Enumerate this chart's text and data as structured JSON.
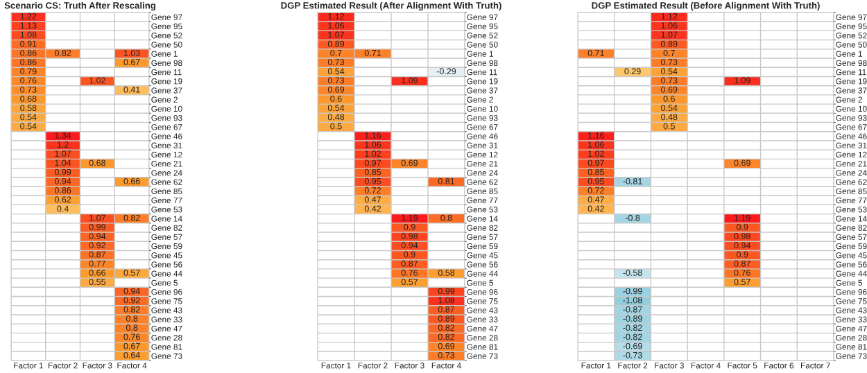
{
  "chart_data": [
    {
      "type": "heatmap",
      "title": "Scenario CS: Truth After Rescaling",
      "grid": true,
      "data_labels": true,
      "categories": [
        "Factor 1",
        "Factor 2",
        "Factor 3",
        "Factor 4"
      ],
      "y_categories": [
        "Gene 97",
        "Gene 95",
        "Gene 52",
        "Gene 50",
        "Gene 1",
        "Gene 98",
        "Gene 11",
        "Gene 19",
        "Gene 37",
        "Gene 2",
        "Gene 10",
        "Gene 93",
        "Gene 67",
        "Gene 46",
        "Gene 31",
        "Gene 12",
        "Gene 21",
        "Gene 24",
        "Gene 62",
        "Gene 85",
        "Gene 77",
        "Gene 53",
        "Gene 14",
        "Gene 82",
        "Gene 57",
        "Gene 59",
        "Gene 45",
        "Gene 56",
        "Gene 44",
        "Gene 5",
        "Gene 96",
        "Gene 75",
        "Gene 43",
        "Gene 33",
        "Gene 47",
        "Gene 28",
        "Gene 81",
        "Gene 73"
      ],
      "cells": [
        [
          1.22,
          null,
          null,
          null
        ],
        [
          1.13,
          null,
          null,
          null
        ],
        [
          1.08,
          null,
          null,
          null
        ],
        [
          0.91,
          null,
          null,
          null
        ],
        [
          0.86,
          0.82,
          null,
          1.03
        ],
        [
          0.86,
          null,
          null,
          0.67
        ],
        [
          0.79,
          null,
          null,
          null
        ],
        [
          0.76,
          null,
          1.02,
          null
        ],
        [
          0.73,
          null,
          null,
          0.41
        ],
        [
          0.68,
          null,
          null,
          null
        ],
        [
          0.58,
          null,
          null,
          null
        ],
        [
          0.54,
          null,
          null,
          null
        ],
        [
          0.54,
          null,
          null,
          null
        ],
        [
          null,
          1.34,
          null,
          null
        ],
        [
          null,
          1.2,
          null,
          null
        ],
        [
          null,
          1.07,
          null,
          null
        ],
        [
          null,
          1.04,
          0.68,
          null
        ],
        [
          null,
          0.99,
          null,
          null
        ],
        [
          null,
          0.94,
          null,
          0.66
        ],
        [
          null,
          0.86,
          null,
          null
        ],
        [
          null,
          0.62,
          null,
          null
        ],
        [
          null,
          0.4,
          null,
          null
        ],
        [
          null,
          null,
          1.07,
          0.82
        ],
        [
          null,
          null,
          0.99,
          null
        ],
        [
          null,
          null,
          0.94,
          null
        ],
        [
          null,
          null,
          0.92,
          null
        ],
        [
          null,
          null,
          0.87,
          null
        ],
        [
          null,
          null,
          0.77,
          null
        ],
        [
          null,
          null,
          0.66,
          0.57
        ],
        [
          null,
          null,
          0.55,
          null
        ],
        [
          null,
          null,
          null,
          0.94
        ],
        [
          null,
          null,
          null,
          0.92
        ],
        [
          null,
          null,
          null,
          0.82
        ],
        [
          null,
          null,
          null,
          0.8
        ],
        [
          null,
          null,
          null,
          0.8
        ],
        [
          null,
          null,
          null,
          0.76
        ],
        [
          null,
          null,
          null,
          0.67
        ],
        [
          null,
          null,
          null,
          0.64
        ]
      ]
    },
    {
      "type": "heatmap",
      "title": "DGP Estimated Result (After Alignment With Truth)",
      "grid": true,
      "data_labels": true,
      "categories": [
        "Factor 1",
        "Factor 2",
        "Factor 3",
        "Factor 4"
      ],
      "y_categories": [
        "Gene 97",
        "Gene 95",
        "Gene 52",
        "Gene 50",
        "Gene 1",
        "Gene 98",
        "Gene 11",
        "Gene 19",
        "Gene 37",
        "Gene 2",
        "Gene 10",
        "Gene 93",
        "Gene 67",
        "Gene 46",
        "Gene 31",
        "Gene 12",
        "Gene 21",
        "Gene 24",
        "Gene 62",
        "Gene 85",
        "Gene 77",
        "Gene 53",
        "Gene 14",
        "Gene 82",
        "Gene 57",
        "Gene 59",
        "Gene 45",
        "Gene 56",
        "Gene 44",
        "Gene 5",
        "Gene 96",
        "Gene 75",
        "Gene 43",
        "Gene 33",
        "Gene 47",
        "Gene 28",
        "Gene 81",
        "Gene 73"
      ],
      "cells": [
        [
          1.12,
          null,
          null,
          null
        ],
        [
          1.06,
          null,
          null,
          null
        ],
        [
          1.07,
          null,
          null,
          null
        ],
        [
          0.89,
          null,
          null,
          null
        ],
        [
          0.7,
          0.71,
          null,
          null
        ],
        [
          0.73,
          null,
          null,
          null
        ],
        [
          0.54,
          null,
          null,
          -0.29
        ],
        [
          0.73,
          null,
          1.09,
          null
        ],
        [
          0.69,
          null,
          null,
          null
        ],
        [
          0.6,
          null,
          null,
          null
        ],
        [
          0.54,
          null,
          null,
          null
        ],
        [
          0.48,
          null,
          null,
          null
        ],
        [
          0.5,
          null,
          null,
          null
        ],
        [
          null,
          1.16,
          null,
          null
        ],
        [
          null,
          1.06,
          null,
          null
        ],
        [
          null,
          1.02,
          null,
          null
        ],
        [
          null,
          0.97,
          0.69,
          null
        ],
        [
          null,
          0.85,
          null,
          null
        ],
        [
          null,
          0.95,
          null,
          0.81
        ],
        [
          null,
          0.72,
          null,
          null
        ],
        [
          null,
          0.47,
          null,
          null
        ],
        [
          null,
          0.42,
          null,
          null
        ],
        [
          null,
          null,
          1.19,
          0.8
        ],
        [
          null,
          null,
          0.9,
          null
        ],
        [
          null,
          null,
          0.98,
          null
        ],
        [
          null,
          null,
          0.94,
          null
        ],
        [
          null,
          null,
          0.9,
          null
        ],
        [
          null,
          null,
          0.87,
          null
        ],
        [
          null,
          null,
          0.76,
          0.58
        ],
        [
          null,
          null,
          0.57,
          null
        ],
        [
          null,
          null,
          null,
          0.99
        ],
        [
          null,
          null,
          null,
          1.08
        ],
        [
          null,
          null,
          null,
          0.87
        ],
        [
          null,
          null,
          null,
          0.89
        ],
        [
          null,
          null,
          null,
          0.82
        ],
        [
          null,
          null,
          null,
          0.82
        ],
        [
          null,
          null,
          null,
          0.69
        ],
        [
          null,
          null,
          null,
          0.73
        ]
      ]
    },
    {
      "type": "heatmap",
      "title": "DGP Estimated Result (Before Alignment With Truth)",
      "grid": true,
      "data_labels": true,
      "categories": [
        "Factor 1",
        "Factor 2",
        "Factor 3",
        "Factor 4",
        "Factor 5",
        "Factor 6",
        "Factor 7"
      ],
      "y_categories": [
        "Gene 97",
        "Gene 95",
        "Gene 52",
        "Gene 50",
        "Gene 1",
        "Gene 98",
        "Gene 11",
        "Gene 19",
        "Gene 37",
        "Gene 2",
        "Gene 10",
        "Gene 93",
        "Gene 67",
        "Gene 46",
        "Gene 31",
        "Gene 12",
        "Gene 21",
        "Gene 24",
        "Gene 62",
        "Gene 85",
        "Gene 77",
        "Gene 53",
        "Gene 14",
        "Gene 82",
        "Gene 57",
        "Gene 59",
        "Gene 45",
        "Gene 56",
        "Gene 44",
        "Gene 5",
        "Gene 96",
        "Gene 75",
        "Gene 43",
        "Gene 33",
        "Gene 47",
        "Gene 28",
        "Gene 81",
        "Gene 73"
      ],
      "cells": [
        [
          null,
          null,
          1.12,
          null,
          null,
          null,
          null
        ],
        [
          null,
          null,
          1.06,
          null,
          null,
          null,
          null
        ],
        [
          null,
          null,
          1.07,
          null,
          null,
          null,
          null
        ],
        [
          null,
          null,
          0.89,
          null,
          null,
          null,
          null
        ],
        [
          0.71,
          null,
          0.7,
          null,
          null,
          null,
          null
        ],
        [
          null,
          null,
          0.73,
          null,
          null,
          null,
          null
        ],
        [
          null,
          0.29,
          0.54,
          null,
          null,
          null,
          null
        ],
        [
          null,
          null,
          0.73,
          null,
          1.09,
          null,
          null
        ],
        [
          null,
          null,
          0.69,
          null,
          null,
          null,
          null
        ],
        [
          null,
          null,
          0.6,
          null,
          null,
          null,
          null
        ],
        [
          null,
          null,
          0.54,
          null,
          null,
          null,
          null
        ],
        [
          null,
          null,
          0.48,
          null,
          null,
          null,
          null
        ],
        [
          null,
          null,
          0.5,
          null,
          null,
          null,
          null
        ],
        [
          1.16,
          null,
          null,
          null,
          null,
          null,
          null
        ],
        [
          1.06,
          null,
          null,
          null,
          null,
          null,
          null
        ],
        [
          1.02,
          null,
          null,
          null,
          null,
          null,
          null
        ],
        [
          0.97,
          null,
          null,
          null,
          0.69,
          null,
          null
        ],
        [
          0.85,
          null,
          null,
          null,
          null,
          null,
          null
        ],
        [
          0.95,
          -0.81,
          null,
          null,
          null,
          null,
          null
        ],
        [
          0.72,
          null,
          null,
          null,
          null,
          null,
          null
        ],
        [
          0.47,
          null,
          null,
          null,
          null,
          null,
          null
        ],
        [
          0.42,
          null,
          null,
          null,
          null,
          null,
          null
        ],
        [
          null,
          -0.8,
          null,
          null,
          1.19,
          null,
          null
        ],
        [
          null,
          null,
          null,
          null,
          0.9,
          null,
          null
        ],
        [
          null,
          null,
          null,
          null,
          0.98,
          null,
          null
        ],
        [
          null,
          null,
          null,
          null,
          0.94,
          null,
          null
        ],
        [
          null,
          null,
          null,
          null,
          0.9,
          null,
          null
        ],
        [
          null,
          null,
          null,
          null,
          0.87,
          null,
          null
        ],
        [
          null,
          -0.58,
          null,
          null,
          0.76,
          null,
          null
        ],
        [
          null,
          null,
          null,
          null,
          0.57,
          null,
          null
        ],
        [
          null,
          -0.99,
          null,
          null,
          null,
          null,
          null
        ],
        [
          null,
          -1.08,
          null,
          null,
          null,
          null,
          null
        ],
        [
          null,
          -0.87,
          null,
          null,
          null,
          null,
          null
        ],
        [
          null,
          -0.89,
          null,
          null,
          null,
          null,
          null
        ],
        [
          null,
          -0.82,
          null,
          null,
          null,
          null,
          null
        ],
        [
          null,
          -0.82,
          null,
          null,
          null,
          null,
          null
        ],
        [
          null,
          -0.69,
          null,
          null,
          null,
          null,
          null
        ],
        [
          null,
          -0.73,
          null,
          null,
          null,
          null,
          null
        ]
      ]
    }
  ]
}
